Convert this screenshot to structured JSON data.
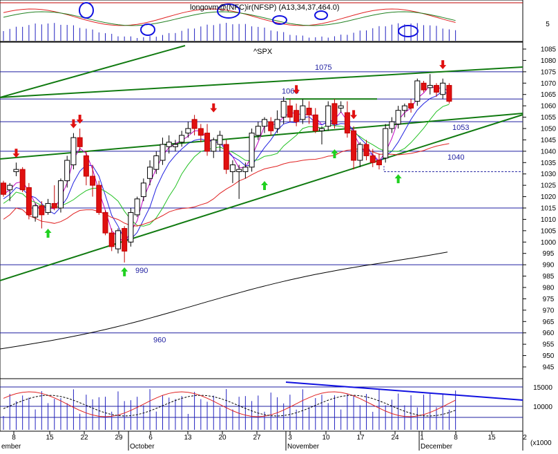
{
  "chart_data": {
    "type": "candlestick",
    "symbol": "^SPX",
    "top_panel_title": "longovm@(NFC)ir(NFSP) (A13,34,37,464.0)",
    "top_panel_ytick": "5",
    "price_axis": {
      "ylim": [
        941,
        1089
      ],
      "ticks": [
        945,
        950,
        955,
        960,
        965,
        970,
        975,
        980,
        985,
        990,
        995,
        1000,
        1005,
        1010,
        1015,
        1020,
        1025,
        1030,
        1035,
        1040,
        1045,
        1050,
        1055,
        1060,
        1065,
        1070,
        1075,
        1080,
        1085
      ]
    },
    "horizontal_levels": [
      1075,
      1063,
      1053,
      1040,
      990,
      960
    ],
    "support_level_dashed": 1031,
    "volume_axis": {
      "ticks": [
        "15000",
        "10000"
      ],
      "unit_label": "(x1000"
    },
    "x_axis": {
      "day_ticks": [
        "8",
        "15",
        "22",
        "29",
        "6",
        "13",
        "20",
        "27",
        "3",
        "10",
        "17",
        "24",
        "1",
        "8",
        "15",
        "2"
      ],
      "month_labels": [
        "ember",
        "October",
        "November",
        "December"
      ]
    },
    "candles": [
      {
        "o": 1026,
        "h": 1027,
        "l": 1020,
        "c": 1021
      },
      {
        "o": 1023,
        "h": 1026,
        "l": 1018,
        "c": 1025
      },
      {
        "o": 1031,
        "h": 1035,
        "l": 1029,
        "c": 1032
      },
      {
        "o": 1032,
        "h": 1033,
        "l": 1022,
        "c": 1023
      },
      {
        "o": 1024,
        "h": 1026,
        "l": 1010,
        "c": 1012
      },
      {
        "o": 1011,
        "h": 1017,
        "l": 1009,
        "c": 1016
      },
      {
        "o": 1016,
        "h": 1018,
        "l": 1006,
        "c": 1012
      },
      {
        "o": 1013,
        "h": 1019,
        "l": 1012,
        "c": 1017
      },
      {
        "o": 1017,
        "h": 1025,
        "l": 1014,
        "c": 1015
      },
      {
        "o": 1015,
        "h": 1028,
        "l": 1013,
        "c": 1027
      },
      {
        "o": 1027,
        "h": 1038,
        "l": 1024,
        "c": 1036
      },
      {
        "o": 1034,
        "h": 1048,
        "l": 1032,
        "c": 1046
      },
      {
        "o": 1046,
        "h": 1050,
        "l": 1040,
        "c": 1042
      },
      {
        "o": 1038,
        "h": 1040,
        "l": 1025,
        "c": 1029
      },
      {
        "o": 1029,
        "h": 1034,
        "l": 1020,
        "c": 1025
      },
      {
        "o": 1025,
        "h": 1027,
        "l": 1012,
        "c": 1013
      },
      {
        "o": 1013,
        "h": 1014,
        "l": 1003,
        "c": 1004
      },
      {
        "o": 1004,
        "h": 1006,
        "l": 996,
        "c": 998
      },
      {
        "o": 997,
        "h": 1006,
        "l": 995,
        "c": 1005
      },
      {
        "o": 1006,
        "h": 1007,
        "l": 991,
        "c": 996
      },
      {
        "o": 1000,
        "h": 1015,
        "l": 998,
        "c": 1013
      },
      {
        "o": 1012,
        "h": 1020,
        "l": 1011,
        "c": 1019
      },
      {
        "o": 1020,
        "h": 1028,
        "l": 1018,
        "c": 1026
      },
      {
        "o": 1028,
        "h": 1036,
        "l": 1025,
        "c": 1033
      },
      {
        "o": 1032,
        "h": 1040,
        "l": 1030,
        "c": 1038
      },
      {
        "o": 1036,
        "h": 1046,
        "l": 1034,
        "c": 1043
      },
      {
        "o": 1042,
        "h": 1047,
        "l": 1039,
        "c": 1044
      },
      {
        "o": 1042,
        "h": 1045,
        "l": 1040,
        "c": 1043
      },
      {
        "o": 1044,
        "h": 1049,
        "l": 1042,
        "c": 1047
      },
      {
        "o": 1048,
        "h": 1053,
        "l": 1046,
        "c": 1050
      },
      {
        "o": 1054,
        "h": 1056,
        "l": 1047,
        "c": 1050
      },
      {
        "o": 1050,
        "h": 1052,
        "l": 1044,
        "c": 1047
      },
      {
        "o": 1048,
        "h": 1052,
        "l": 1038,
        "c": 1040
      },
      {
        "o": 1040,
        "h": 1046,
        "l": 1037,
        "c": 1045
      },
      {
        "o": 1043,
        "h": 1049,
        "l": 1040,
        "c": 1047
      },
      {
        "o": 1043,
        "h": 1045,
        "l": 1030,
        "c": 1032
      },
      {
        "o": 1031,
        "h": 1036,
        "l": 1026,
        "c": 1034
      },
      {
        "o": 1031,
        "h": 1034,
        "l": 1019,
        "c": 1032
      },
      {
        "o": 1031,
        "h": 1035,
        "l": 1028,
        "c": 1033
      },
      {
        "o": 1033,
        "h": 1050,
        "l": 1031,
        "c": 1048
      },
      {
        "o": 1047,
        "h": 1053,
        "l": 1045,
        "c": 1051
      },
      {
        "o": 1051,
        "h": 1055,
        "l": 1048,
        "c": 1054
      },
      {
        "o": 1053,
        "h": 1055,
        "l": 1047,
        "c": 1049
      },
      {
        "o": 1050,
        "h": 1058,
        "l": 1048,
        "c": 1054
      },
      {
        "o": 1055,
        "h": 1064,
        "l": 1052,
        "c": 1062
      },
      {
        "o": 1060,
        "h": 1063,
        "l": 1053,
        "c": 1055
      },
      {
        "o": 1058,
        "h": 1061,
        "l": 1051,
        "c": 1053
      },
      {
        "o": 1054,
        "h": 1063,
        "l": 1052,
        "c": 1060
      },
      {
        "o": 1059,
        "h": 1062,
        "l": 1052,
        "c": 1056
      },
      {
        "o": 1056,
        "h": 1059,
        "l": 1048,
        "c": 1049
      },
      {
        "o": 1049,
        "h": 1051,
        "l": 1043,
        "c": 1050
      },
      {
        "o": 1051,
        "h": 1062,
        "l": 1049,
        "c": 1060
      },
      {
        "o": 1061,
        "h": 1063,
        "l": 1050,
        "c": 1052
      },
      {
        "o": 1059,
        "h": 1062,
        "l": 1057,
        "c": 1060
      },
      {
        "o": 1057,
        "h": 1062,
        "l": 1046,
        "c": 1048
      },
      {
        "o": 1049,
        "h": 1051,
        "l": 1032,
        "c": 1036
      },
      {
        "o": 1036,
        "h": 1044,
        "l": 1033,
        "c": 1043
      },
      {
        "o": 1043,
        "h": 1045,
        "l": 1036,
        "c": 1038
      },
      {
        "o": 1038,
        "h": 1041,
        "l": 1033,
        "c": 1035
      },
      {
        "o": 1036,
        "h": 1039,
        "l": 1032,
        "c": 1034
      },
      {
        "o": 1037,
        "h": 1052,
        "l": 1035,
        "c": 1050
      },
      {
        "o": 1050,
        "h": 1055,
        "l": 1048,
        "c": 1053
      },
      {
        "o": 1052,
        "h": 1060,
        "l": 1050,
        "c": 1058
      },
      {
        "o": 1058,
        "h": 1061,
        "l": 1055,
        "c": 1060
      },
      {
        "o": 1061,
        "h": 1063,
        "l": 1057,
        "c": 1059
      },
      {
        "o": 1062,
        "h": 1072,
        "l": 1060,
        "c": 1071
      },
      {
        "o": 1070,
        "h": 1071,
        "l": 1066,
        "c": 1067
      },
      {
        "o": 1068,
        "h": 1074,
        "l": 1065,
        "c": 1069
      },
      {
        "o": 1069,
        "h": 1070,
        "l": 1064,
        "c": 1066
      },
      {
        "o": 1065,
        "h": 1072,
        "l": 1063,
        "c": 1070
      },
      {
        "o": 1069,
        "h": 1070,
        "l": 1061,
        "c": 1062
      }
    ]
  }
}
